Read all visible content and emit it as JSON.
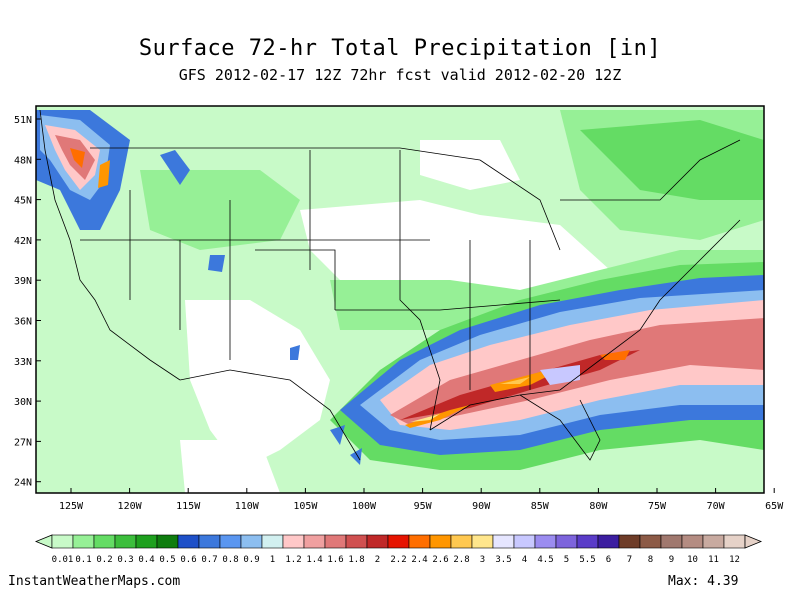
{
  "title": "Surface 72-hr Total Precipitation [in]",
  "subtitle": "GFS 2012-02-17 12Z 72hr fcst valid 2012-02-20 12Z",
  "lat_labels": [
    "51N",
    "48N",
    "45N",
    "42N",
    "39N",
    "36N",
    "33N",
    "30N",
    "27N",
    "24N"
  ],
  "lon_labels": [
    "125W",
    "120W",
    "115W",
    "110W",
    "105W",
    "100W",
    "95W",
    "90W",
    "85W",
    "80W",
    "75W",
    "70W",
    "65W"
  ],
  "colorbar": {
    "labels": [
      "0.01",
      "0.1",
      "0.2",
      "0.3",
      "0.4",
      "0.5",
      "0.6",
      "0.7",
      "0.8",
      "0.9",
      "1",
      "1.2",
      "1.4",
      "1.6",
      "1.8",
      "2",
      "2.2",
      "2.4",
      "2.6",
      "2.8",
      "3",
      "3.5",
      "4",
      "4.5",
      "5",
      "5.5",
      "6",
      "7",
      "8",
      "9",
      "10",
      "11",
      "12"
    ],
    "colors": [
      "#c8fac8",
      "#96f096",
      "#64dc64",
      "#3cbe3c",
      "#1ea01e",
      "#0f7d0f",
      "#1e50c8",
      "#3c78dc",
      "#5a96f0",
      "#8cbef0",
      "#d2f0f0",
      "#ffc8c8",
      "#f0a0a0",
      "#e07878",
      "#d05050",
      "#c02828",
      "#e61400",
      "#ff6e00",
      "#ff9600",
      "#ffc850",
      "#ffe68c",
      "#e6e6ff",
      "#c8c8ff",
      "#9b8cf0",
      "#7d64dc",
      "#5a3cc8",
      "#3c1ea0",
      "#6e3c28",
      "#8c5a46",
      "#a0786e",
      "#b48c82",
      "#c8aaa0",
      "#e6d2c8"
    ]
  },
  "footer": {
    "site": "InstantWeatherMaps.com",
    "max": "Max:  4.39"
  }
}
